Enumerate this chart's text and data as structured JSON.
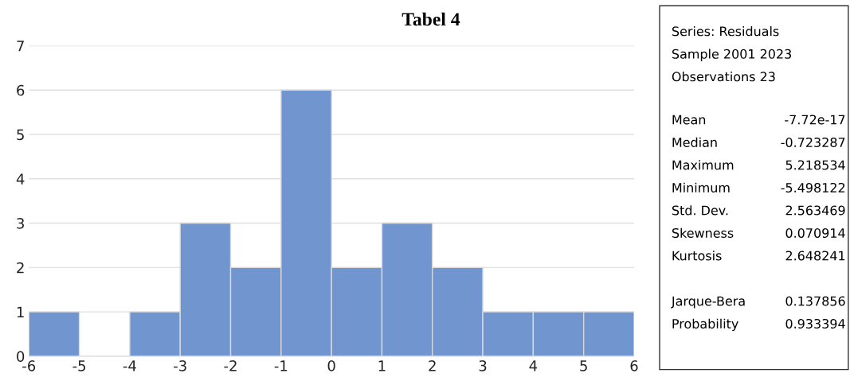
{
  "chart_data": {
    "type": "histogram",
    "title": "Tabel 4",
    "bins": [
      -6,
      -5,
      -4,
      -3,
      -2,
      -1,
      0,
      1,
      2,
      3,
      4,
      5,
      6
    ],
    "values": [
      1,
      0,
      1,
      3,
      2,
      6,
      2,
      3,
      2,
      1,
      1,
      1
    ],
    "color": "#7196cf",
    "xlim": [
      -6,
      6
    ],
    "xticks": [
      -6,
      -5,
      -4,
      -3,
      -2,
      -1,
      0,
      1,
      2,
      3,
      4,
      5,
      6
    ],
    "ylim": [
      0,
      7
    ],
    "yticks": [
      0,
      1,
      2,
      3,
      4,
      5,
      6,
      7
    ],
    "grid": "y",
    "annotations": [
      "Series: Residuals",
      "Sample 2001 2023",
      "Observations 23",
      "Mean",
      "-7.72e-17",
      "Median",
      "-0.723287",
      "Maximum",
      "5.218534",
      "Minimum",
      "-5.498122",
      "Std. Dev.",
      "2.563469",
      "Skewness",
      "0.070914",
      "Kurtosis",
      "2.648241",
      "Jarque-Bera",
      "0.137856",
      "Probability",
      "0.933394"
    ]
  }
}
